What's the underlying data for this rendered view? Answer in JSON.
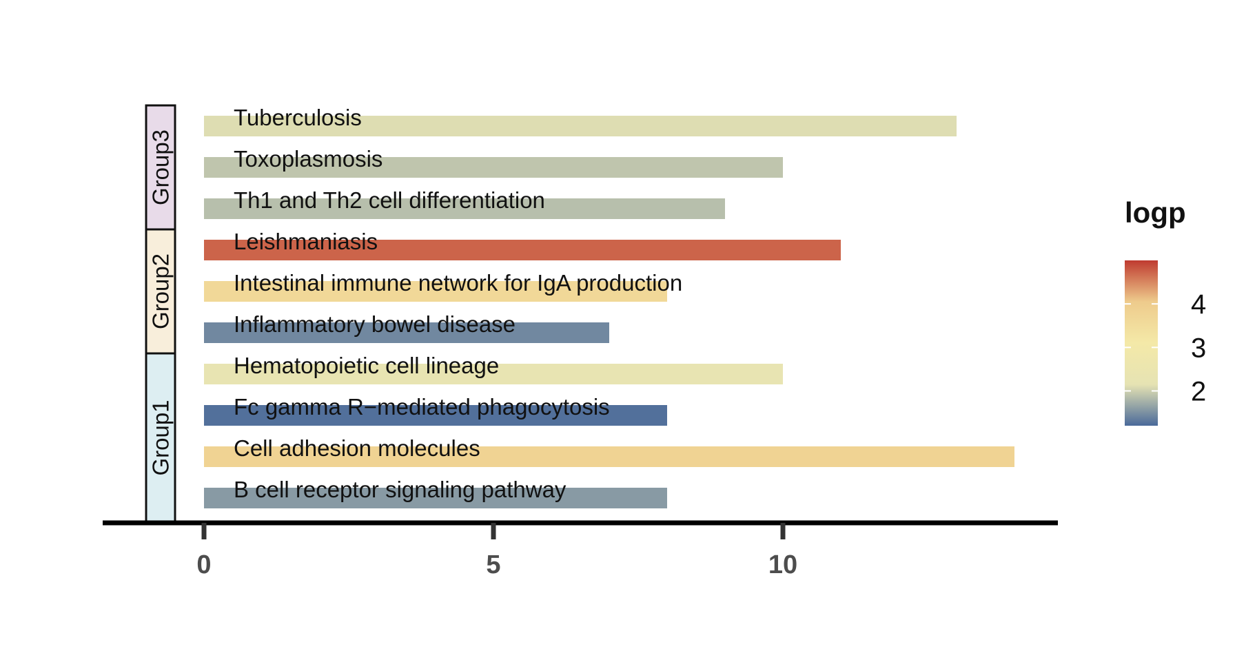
{
  "chart_data": {
    "type": "bar",
    "orientation": "horizontal",
    "categories": [
      "Tuberculosis",
      "Toxoplasmosis",
      "Th1 and Th2 cell differentiation",
      "Leishmaniasis",
      "Intestinal immune network for IgA production",
      "Inflammatory bowel disease",
      "Hematopoietic cell lineage",
      "Fc gamma R−mediated phagocytosis",
      "Cell adhesion molecules",
      "B cell receptor signaling pathway"
    ],
    "values": [
      13,
      10,
      9,
      11,
      8,
      7,
      10,
      8,
      14,
      8
    ],
    "logp": [
      2.15,
      1.95,
      1.9,
      4.6,
      3.35,
      1.45,
      2.3,
      1.25,
      3.45,
      1.6
    ],
    "groups": [
      {
        "name": "Group3",
        "items": [
          "Tuberculosis",
          "Toxoplasmosis",
          "Th1 and Th2 cell differentiation"
        ],
        "color": "#e8dbe9"
      },
      {
        "name": "Group2",
        "items": [
          "Leishmaniasis",
          "Intestinal immune network for IgA production",
          "Inflammatory bowel disease"
        ],
        "color": "#f8eedb"
      },
      {
        "name": "Group1",
        "items": [
          "Hematopoietic cell lineage",
          "Fc gamma R−mediated phagocytosis",
          "Cell adhesion molecules",
          "B cell receptor signaling pathway"
        ],
        "color": "#ddeef2"
      }
    ],
    "x_ticks": [
      0,
      5,
      10
    ],
    "xlim": [
      -1.75,
      14.75
    ],
    "xlabel": "",
    "ylabel": "",
    "grid": false,
    "legend": {
      "title": "logp",
      "position": "right",
      "ticks": [
        2,
        3,
        4
      ],
      "range": [
        1.2,
        5.0
      ],
      "colors": [
        "#4a6a9a",
        "#e6e3b3",
        "#f4e9a8",
        "#eecb8c",
        "#bf3b30"
      ]
    }
  }
}
